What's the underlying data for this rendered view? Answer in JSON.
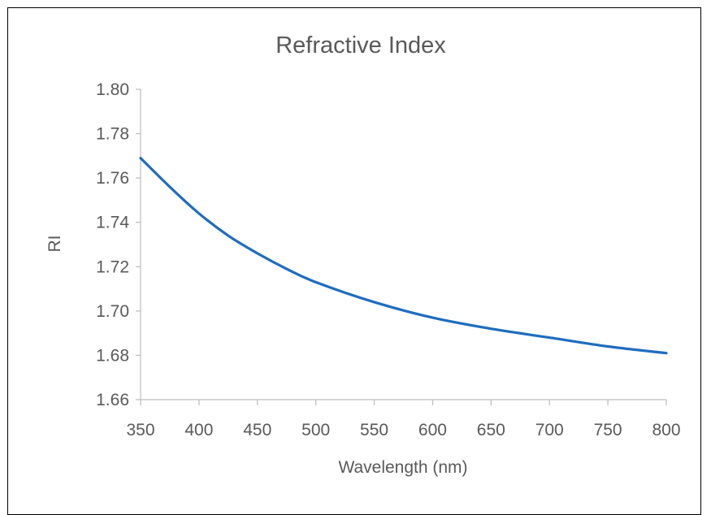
{
  "chart_data": {
    "type": "line",
    "title": "Refractive Index",
    "xlabel": "Wavelength (nm)",
    "ylabel": "RI",
    "xlim": [
      350,
      800
    ],
    "ylim": [
      1.66,
      1.8
    ],
    "xticks": [
      "350",
      "400",
      "450",
      "500",
      "550",
      "600",
      "650",
      "700",
      "750",
      "800"
    ],
    "yticks": [
      "1.66",
      "1.68",
      "1.70",
      "1.72",
      "1.74",
      "1.76",
      "1.78",
      "1.80"
    ],
    "grid": false,
    "legend": "none",
    "series": [
      {
        "color": "#1f6cc0",
        "x": [
          350,
          375,
          400,
          425,
          450,
          475,
          500,
          550,
          600,
          650,
          700,
          750,
          800
        ],
        "y": [
          1.769,
          1.756,
          1.744,
          1.734,
          1.726,
          1.719,
          1.713,
          1.704,
          1.697,
          1.692,
          1.688,
          1.684,
          1.681
        ]
      }
    ],
    "colors": {
      "axis": "#bfbfbf",
      "text": "#595959",
      "frame": "#000000"
    }
  }
}
